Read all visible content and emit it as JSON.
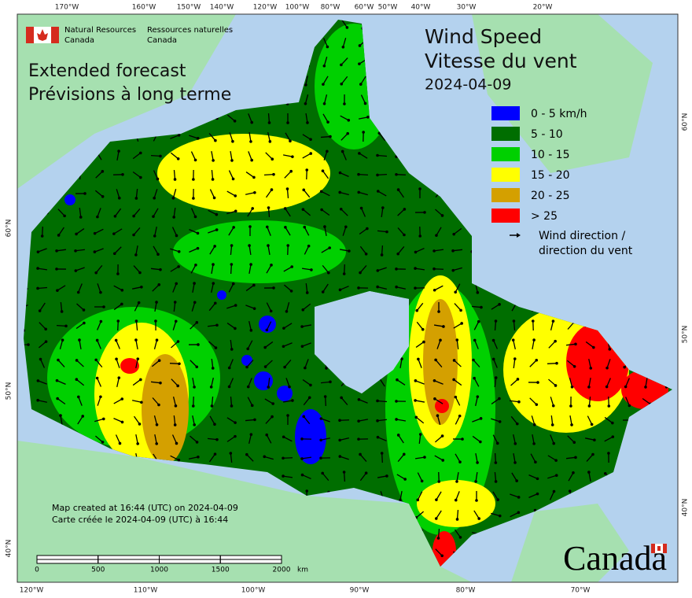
{
  "header": {
    "agency_en": [
      "Natural Resources",
      "Canada"
    ],
    "agency_fr": [
      "Ressources naturelles",
      "Canada"
    ]
  },
  "subtitle": [
    "Extended forecast",
    "Prévisions à long terme"
  ],
  "title": [
    "Wind Speed",
    "Vitesse du vent",
    "2024-04-09"
  ],
  "legend": [
    {
      "label": "0 - 5 km/h",
      "color": "#0000ff"
    },
    {
      "label": "5 - 10",
      "color": "#006e00"
    },
    {
      "label": "10 - 15",
      "color": "#00d000"
    },
    {
      "label": "15 - 20",
      "color": "#ffff00"
    },
    {
      "label": "20 - 25",
      "color": "#d4a000"
    },
    {
      "label": "> 25",
      "color": "#ff0000"
    }
  ],
  "legend_arrow": [
    "Wind direction /",
    "direction du vent"
  ],
  "top_lon_labels": [
    "170°W",
    "160°W",
    "150°W",
    "140°W",
    "120°W",
    "100°W",
    "80°W",
    "60°W",
    "50°W",
    "40°W",
    "30°W",
    "20°W"
  ],
  "bottom_lon_labels": [
    "120°W",
    "110°W",
    "100°W",
    "90°W",
    "80°W",
    "70°W"
  ],
  "left_lat_labels": [
    "60°N",
    "50°N",
    "40°N"
  ],
  "right_lat_labels": [
    "60°N",
    "50°N",
    "40°N"
  ],
  "scale": {
    "ticks": [
      0,
      500,
      1000,
      1500,
      2000
    ],
    "unit": "km"
  },
  "footer": [
    "Map created at 16:44 (UTC) on 2024-04-09",
    "Carte créée le 2024-04-09 (UTC) à 16:44"
  ],
  "wordmark": "Canada"
}
